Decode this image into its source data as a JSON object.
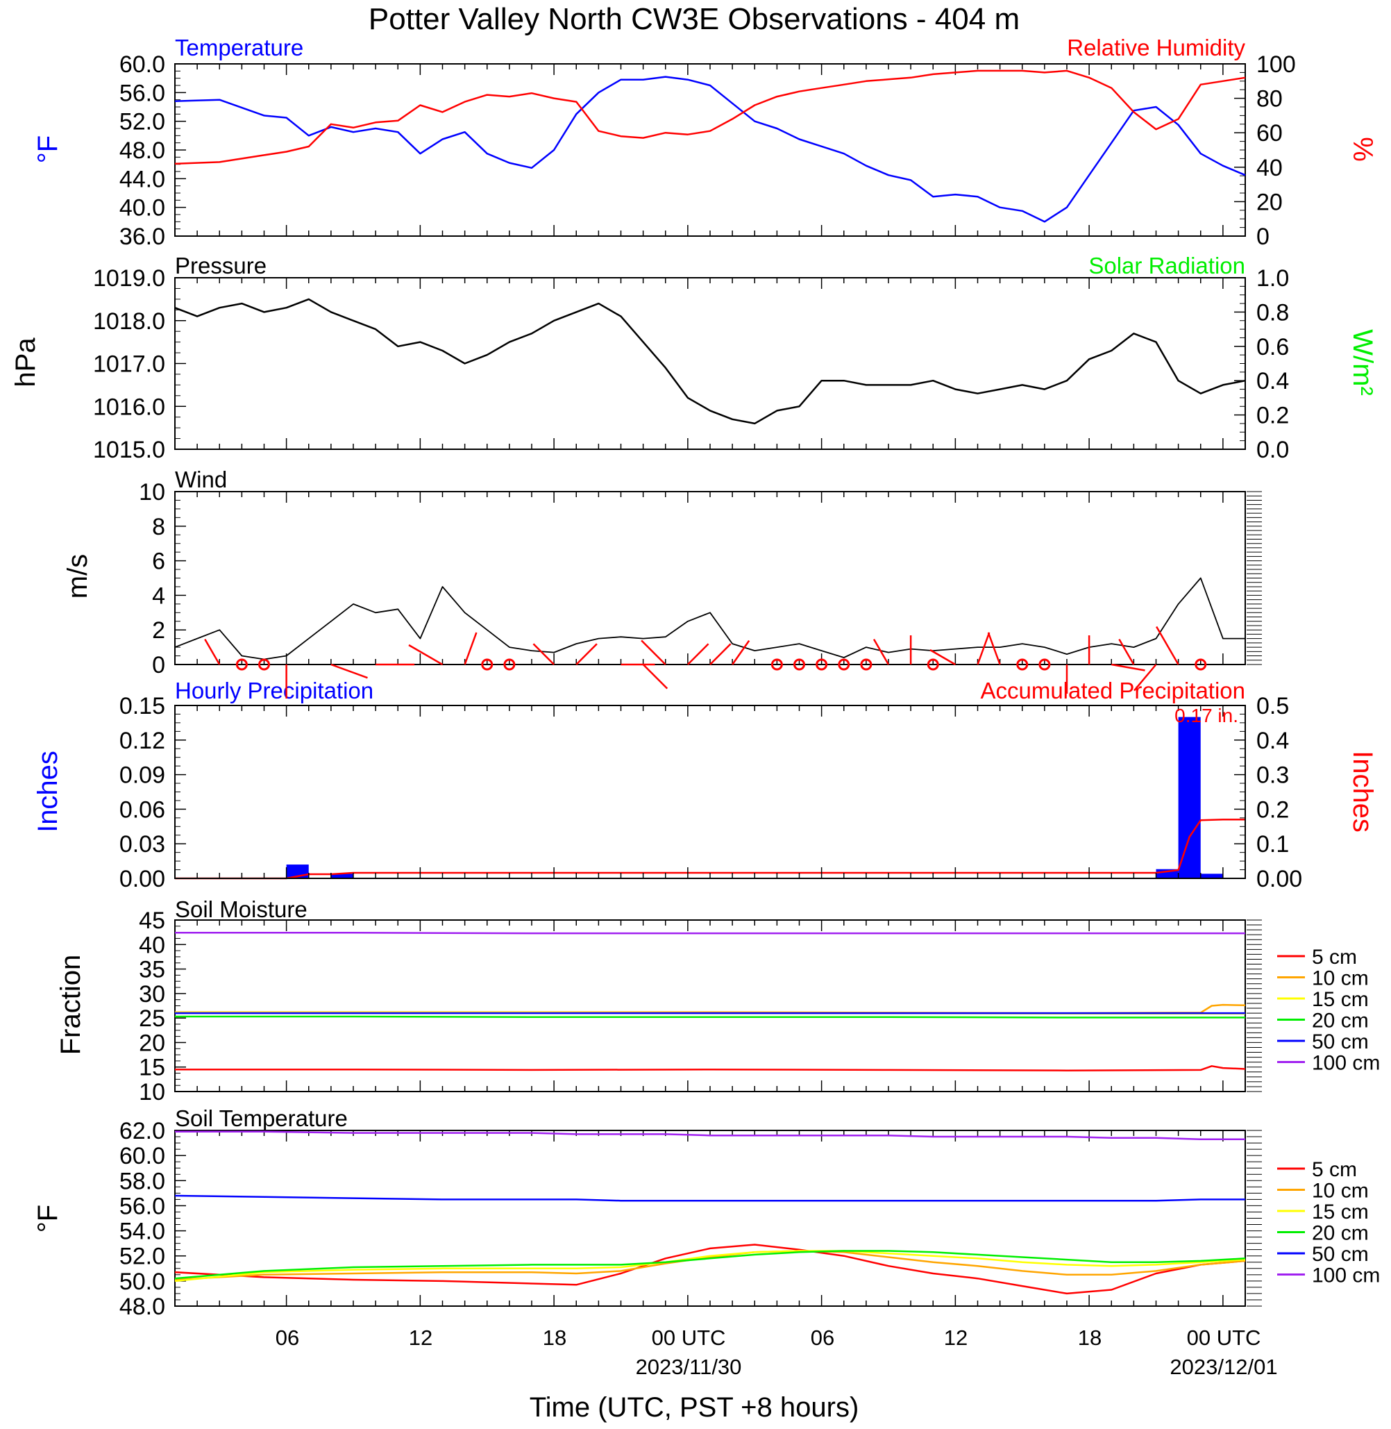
{
  "title": "Potter Valley North CW3E Observations - 404 m",
  "x_axis": {
    "label": "Time (UTC, PST +8 hours)",
    "tick_labels": [
      "06",
      "12",
      "18",
      "00 UTC",
      "06",
      "12",
      "18",
      "00 UTC"
    ],
    "date_labels": [
      "2023/11/30",
      "2023/12/01"
    ],
    "start": "2023-11-29 01:00 UTC",
    "end": "2023-12-01 01:00 UTC"
  },
  "colors": {
    "temperature": "#0000ff",
    "humidity": "#ff0000",
    "pressure": "#000000",
    "solar": "#00ee00",
    "wind": "#000000",
    "barb": "#ff0000",
    "precip_bar": "#0000ff",
    "precip_accum": "#ff0000",
    "d5": "#ff0000",
    "d10": "#ffa500",
    "d15": "#ffff00",
    "d20": "#00ee00",
    "d50": "#0000ff",
    "d100": "#a020f0"
  },
  "chart_data": [
    {
      "type": "line",
      "title_left": "Temperature",
      "title_right": "Relative Humidity",
      "ylabel_left": "°F",
      "ylabel_right": "%",
      "ylim_left": [
        36,
        60
      ],
      "ylim_right": [
        0,
        100
      ],
      "yticks_left": [
        "60.0",
        "56.0",
        "52.0",
        "48.0",
        "44.0",
        "40.0",
        "36.0"
      ],
      "yticks_right": [
        "100",
        "80",
        "60",
        "40",
        "20",
        "0"
      ],
      "x_hours": [
        0,
        2,
        4,
        5,
        6,
        7,
        8,
        9,
        10,
        11,
        12,
        13,
        14,
        15,
        16,
        17,
        18,
        19,
        20,
        21,
        22,
        23,
        24,
        25,
        26,
        27,
        28,
        29,
        30,
        31,
        32,
        33,
        34,
        35,
        36,
        37,
        38,
        39,
        40,
        41,
        42,
        43,
        44,
        45,
        46,
        47,
        48
      ],
      "series": [
        {
          "name": "Temperature",
          "axis": "left",
          "values": [
            54.8,
            55.0,
            52.8,
            52.5,
            50.0,
            51.2,
            50.5,
            51.0,
            50.5,
            47.5,
            49.5,
            50.5,
            47.5,
            46.2,
            45.5,
            48.0,
            53.0,
            56.0,
            57.8,
            57.8,
            58.2,
            57.8,
            57.0,
            54.5,
            52.0,
            51.0,
            49.5,
            48.5,
            47.5,
            45.8,
            44.5,
            43.8,
            41.5,
            41.8,
            41.5,
            40.0,
            39.5,
            38.0,
            40.0,
            44.5,
            49.0,
            53.5,
            54.0,
            51.5,
            47.5,
            45.8,
            44.5
          ]
        },
        {
          "name": "Relative Humidity",
          "axis": "right",
          "values": [
            42,
            43,
            47,
            49,
            52,
            65,
            63,
            66,
            67,
            76,
            72,
            78,
            82,
            81,
            83,
            80,
            78,
            61,
            58,
            57,
            60,
            59,
            61,
            68,
            76,
            81,
            84,
            86,
            88,
            90,
            91,
            92,
            94,
            95,
            96,
            96,
            96,
            95,
            96,
            92,
            86,
            72,
            62,
            68,
            88,
            90,
            92
          ]
        }
      ]
    },
    {
      "type": "line",
      "title_left": "Pressure",
      "title_right": "Solar Radiation",
      "ylabel_left": "hPa",
      "ylabel_right": "W/m²",
      "ylim_left": [
        1015,
        1019
      ],
      "ylim_right": [
        0,
        1
      ],
      "yticks_left": [
        "1019.0",
        "1018.0",
        "1017.0",
        "1016.0",
        "1015.0"
      ],
      "yticks_right": [
        "1.0",
        "0.8",
        "0.6",
        "0.4",
        "0.2",
        "0.0"
      ],
      "x_hours": [
        0,
        1,
        2,
        3,
        4,
        5,
        6,
        7,
        8,
        9,
        10,
        11,
        12,
        13,
        14,
        15,
        16,
        17,
        18,
        19,
        20,
        21,
        22,
        23,
        24,
        25,
        26,
        27,
        28,
        29,
        30,
        31,
        32,
        33,
        34,
        35,
        36,
        37,
        38,
        39,
        40,
        41,
        42,
        43,
        44,
        45,
        46,
        47,
        48
      ],
      "series": [
        {
          "name": "Pressure",
          "axis": "left",
          "values": [
            1018.3,
            1018.1,
            1018.3,
            1018.4,
            1018.2,
            1018.3,
            1018.5,
            1018.2,
            1018.0,
            1017.8,
            1017.4,
            1017.5,
            1017.3,
            1017.0,
            1017.2,
            1017.5,
            1017.7,
            1018.0,
            1018.2,
            1018.4,
            1018.1,
            1017.5,
            1016.9,
            1016.2,
            1015.9,
            1015.7,
            1015.6,
            1015.9,
            1016.0,
            1016.6,
            1016.6,
            1016.5,
            1016.5,
            1016.5,
            1016.6,
            1016.4,
            1016.3,
            1016.4,
            1016.5,
            1016.4,
            1016.6,
            1017.1,
            1017.3,
            1017.7,
            1017.5,
            1016.6,
            1016.3,
            1016.5,
            1016.6
          ]
        },
        {
          "name": "Solar Radiation",
          "axis": "right",
          "values": []
        }
      ]
    },
    {
      "type": "line",
      "title_left": "Wind",
      "ylabel_left": "m/s",
      "ylim_left": [
        0,
        10
      ],
      "yticks_left": [
        "10",
        "8",
        "6",
        "4",
        "2",
        "0"
      ],
      "x_hours": [
        0,
        1,
        2,
        3,
        4,
        5,
        6,
        7,
        8,
        9,
        10,
        11,
        12,
        13,
        14,
        15,
        16,
        17,
        18,
        19,
        20,
        21,
        22,
        23,
        24,
        25,
        26,
        27,
        28,
        29,
        30,
        31,
        32,
        33,
        34,
        35,
        36,
        37,
        38,
        39,
        40,
        41,
        42,
        43,
        44,
        45,
        46,
        47,
        48
      ],
      "series": [
        {
          "name": "Wind speed",
          "axis": "left",
          "values": [
            1.0,
            1.5,
            2.0,
            0.5,
            0.3,
            0.5,
            1.5,
            2.5,
            3.5,
            3.0,
            3.2,
            1.5,
            4.5,
            3.0,
            2.0,
            1.0,
            0.8,
            0.7,
            1.2,
            1.5,
            1.6,
            1.5,
            1.6,
            2.5,
            3.0,
            1.2,
            0.8,
            1.0,
            1.2,
            0.8,
            0.4,
            1.0,
            0.7,
            0.9,
            0.8,
            0.9,
            1.0,
            1.0,
            1.2,
            1.0,
            0.6,
            1.0,
            1.2,
            1.0,
            1.5,
            3.5,
            5.0,
            1.5,
            1.5
          ]
        }
      ],
      "barbs": [
        {
          "hour": 2,
          "dir": 330,
          "speed": 2
        },
        {
          "hour": 3,
          "dir": 0,
          "speed": 0
        },
        {
          "hour": 4,
          "dir": 0,
          "speed": 0
        },
        {
          "hour": 5,
          "dir": 180,
          "speed": 3
        },
        {
          "hour": 7,
          "dir": 110,
          "speed": 4
        },
        {
          "hour": 9,
          "dir": 90,
          "speed": 4
        },
        {
          "hour": 12,
          "dir": 300,
          "speed": 4
        },
        {
          "hour": 13,
          "dir": 20,
          "speed": 3
        },
        {
          "hour": 14,
          "dir": 0,
          "speed": 0
        },
        {
          "hour": 15,
          "dir": 0,
          "speed": 0
        },
        {
          "hour": 17,
          "dir": 315,
          "speed": 2
        },
        {
          "hour": 18,
          "dir": 45,
          "speed": 2
        },
        {
          "hour": 20,
          "dir": 90,
          "speed": 3
        },
        {
          "hour": 21,
          "dir": 135,
          "speed": 3
        },
        {
          "hour": 22,
          "dir": 315,
          "speed": 3
        },
        {
          "hour": 23,
          "dir": 45,
          "speed": 2
        },
        {
          "hour": 24,
          "dir": 45,
          "speed": 2
        },
        {
          "hour": 25,
          "dir": 35,
          "speed": 2
        },
        {
          "hour": 27,
          "dir": 0,
          "speed": 0
        },
        {
          "hour": 28,
          "dir": 0,
          "speed": 0
        },
        {
          "hour": 29,
          "dir": 0,
          "speed": 0
        },
        {
          "hour": 30,
          "dir": 0,
          "speed": 0
        },
        {
          "hour": 31,
          "dir": 0,
          "speed": 0
        },
        {
          "hour": 32,
          "dir": 330,
          "speed": 2
        },
        {
          "hour": 33,
          "dir": 0,
          "speed": 2
        },
        {
          "hour": 34,
          "dir": 0,
          "speed": 0
        },
        {
          "hour": 35,
          "dir": 300,
          "speed": 2
        },
        {
          "hour": 36,
          "dir": 20,
          "speed": 3
        },
        {
          "hour": 37,
          "dir": 340,
          "speed": 3
        },
        {
          "hour": 38,
          "dir": 0,
          "speed": 0
        },
        {
          "hour": 39,
          "dir": 0,
          "speed": 0
        },
        {
          "hour": 40,
          "dir": 180,
          "speed": 2
        },
        {
          "hour": 41,
          "dir": 0,
          "speed": 2
        },
        {
          "hour": 42,
          "dir": 100,
          "speed": 3
        },
        {
          "hour": 43,
          "dir": 330,
          "speed": 2
        },
        {
          "hour": 44,
          "dir": 220,
          "speed": 3
        },
        {
          "hour": 45,
          "dir": 330,
          "speed": 5
        },
        {
          "hour": 46,
          "dir": 0,
          "speed": 0
        }
      ]
    },
    {
      "type": "bar",
      "title_left": "Hourly Precipitation",
      "title_right": "Accumulated Precipitation",
      "annotation": "0.17 in.",
      "ylabel_left": "Inches",
      "ylabel_right": "Inches",
      "ylim_left": [
        0,
        0.15
      ],
      "ylim_right": [
        0,
        0.5
      ],
      "yticks_left": [
        "0.15",
        "0.12",
        "0.09",
        "0.06",
        "0.03",
        "0.00"
      ],
      "yticks_right": [
        "0.5",
        "0.4",
        "0.3",
        "0.2",
        "0.1",
        "0.00"
      ],
      "bars": [
        {
          "start_hour": 5,
          "end_hour": 6,
          "value": 0.012
        },
        {
          "start_hour": 7,
          "end_hour": 8,
          "value": 0.004
        },
        {
          "start_hour": 44,
          "end_hour": 45,
          "value": 0.008
        },
        {
          "start_hour": 45,
          "end_hour": 46,
          "value": 0.14
        },
        {
          "start_hour": 46,
          "end_hour": 47,
          "value": 0.004
        }
      ],
      "accumulated": {
        "x_hours": [
          0,
          5,
          6,
          7,
          8,
          44,
          45,
          45.5,
          46,
          47,
          48
        ],
        "values": [
          0,
          0,
          0.012,
          0.012,
          0.016,
          0.016,
          0.024,
          0.12,
          0.168,
          0.17,
          0.17
        ]
      }
    },
    {
      "type": "line",
      "title_left": "Soil Moisture",
      "ylabel_left": "Fraction",
      "ylim_left": [
        10,
        45
      ],
      "yticks_left": [
        "45",
        "40",
        "35",
        "30",
        "25",
        "20",
        "15",
        "10"
      ],
      "x_hours": [
        0,
        8,
        16,
        24,
        32,
        40,
        46,
        46.5,
        47,
        48
      ],
      "series": [
        {
          "name": "5 cm",
          "values": [
            14.5,
            14.5,
            14.4,
            14.5,
            14.4,
            14.3,
            14.4,
            15.2,
            14.8,
            14.6
          ]
        },
        {
          "name": "10 cm",
          "values": [
            26.2,
            26.2,
            26.2,
            26.2,
            26.1,
            26.0,
            26.1,
            27.5,
            27.7,
            27.6
          ]
        },
        {
          "name": "15 cm",
          "values": [
            26.1,
            26.1,
            26.1,
            26.0,
            26.0,
            25.9,
            25.9,
            25.9,
            25.9,
            25.9
          ]
        },
        {
          "name": "20 cm",
          "values": [
            25.3,
            25.3,
            25.2,
            25.2,
            25.2,
            25.1,
            25.1,
            25.1,
            25.1,
            25.1
          ]
        },
        {
          "name": "50 cm",
          "values": [
            26.0,
            26.0,
            26.0,
            26.0,
            26.0,
            26.0,
            26.0,
            26.0,
            26.0,
            26.0
          ]
        },
        {
          "name": "100 cm",
          "values": [
            42.4,
            42.4,
            42.3,
            42.3,
            42.3,
            42.3,
            42.3,
            42.3,
            42.3,
            42.3
          ]
        }
      ],
      "legend": [
        "5 cm",
        "10 cm",
        "15 cm",
        "20 cm",
        "50 cm",
        "100 cm"
      ]
    },
    {
      "type": "line",
      "title_left": "Soil Temperature",
      "ylabel_left": "°F",
      "ylim_left": [
        48,
        62
      ],
      "yticks_left": [
        "62.0",
        "60.0",
        "58.0",
        "56.0",
        "54.0",
        "52.0",
        "50.0",
        "48.0"
      ],
      "x_hours": [
        0,
        4,
        8,
        12,
        16,
        18,
        20,
        22,
        24,
        26,
        28,
        30,
        32,
        34,
        36,
        38,
        40,
        42,
        44,
        46,
        48
      ],
      "series": [
        {
          "name": "5 cm",
          "values": [
            50.7,
            50.3,
            50.1,
            50.0,
            49.8,
            49.7,
            50.6,
            51.8,
            52.6,
            52.9,
            52.5,
            52.0,
            51.2,
            50.6,
            50.2,
            49.6,
            49.0,
            49.3,
            50.6,
            51.3,
            51.6
          ]
        },
        {
          "name": "10 cm",
          "values": [
            50.1,
            50.5,
            50.6,
            50.7,
            50.7,
            50.6,
            50.8,
            51.4,
            51.9,
            52.3,
            52.4,
            52.3,
            51.9,
            51.5,
            51.2,
            50.8,
            50.5,
            50.5,
            50.8,
            51.3,
            51.6
          ]
        },
        {
          "name": "15 cm",
          "values": [
            50.0,
            50.7,
            50.9,
            51.0,
            51.0,
            51.0,
            51.1,
            51.5,
            52.0,
            52.3,
            52.4,
            52.4,
            52.2,
            52.0,
            51.8,
            51.5,
            51.3,
            51.2,
            51.3,
            51.5,
            51.7
          ]
        },
        {
          "name": "20 cm",
          "values": [
            50.2,
            50.8,
            51.1,
            51.2,
            51.3,
            51.3,
            51.3,
            51.5,
            51.8,
            52.1,
            52.3,
            52.4,
            52.4,
            52.3,
            52.1,
            51.9,
            51.7,
            51.5,
            51.5,
            51.6,
            51.8
          ]
        },
        {
          "name": "50 cm",
          "values": [
            56.8,
            56.7,
            56.6,
            56.5,
            56.5,
            56.5,
            56.4,
            56.4,
            56.4,
            56.4,
            56.4,
            56.4,
            56.4,
            56.4,
            56.4,
            56.4,
            56.4,
            56.4,
            56.4,
            56.5,
            56.5
          ]
        },
        {
          "name": "100 cm",
          "values": [
            61.9,
            61.9,
            61.8,
            61.8,
            61.8,
            61.7,
            61.7,
            61.7,
            61.6,
            61.6,
            61.6,
            61.6,
            61.6,
            61.5,
            61.5,
            61.5,
            61.5,
            61.4,
            61.4,
            61.3,
            61.3
          ]
        }
      ],
      "legend": [
        "5 cm",
        "10 cm",
        "15 cm",
        "20 cm",
        "50 cm",
        "100 cm"
      ]
    }
  ]
}
